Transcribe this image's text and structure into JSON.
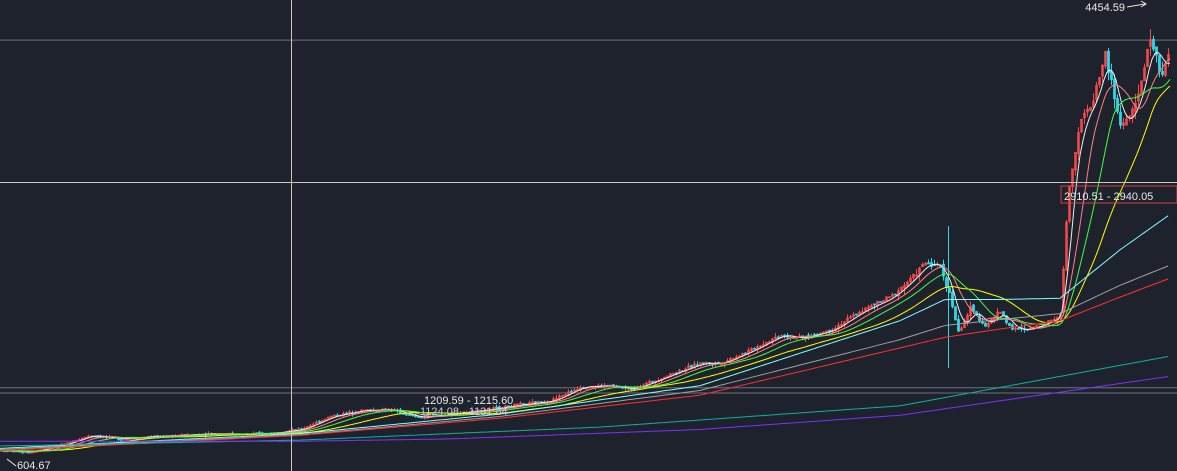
{
  "chart_data": {
    "type": "candlestick",
    "y_scale": "linear",
    "y_range": [
      604.67,
      4454.59
    ],
    "colors": {
      "up": "#f04a4a",
      "down": "#2fd7e8",
      "grid": "#6e7079",
      "crosshair": "#c8c8c8",
      "ma": [
        "#f0f0f0",
        "#ff8080",
        "#ffff00",
        "#40ff40",
        "#80ffff",
        "#a0a0a0",
        "#ff3030",
        "#10b0a0",
        "#8030ff"
      ]
    },
    "annotations": {
      "high": {
        "label": "4454.59",
        "value": 4454.59
      },
      "low": {
        "label": "604.67",
        "value": 604.67
      },
      "range1": {
        "label": "1209.59 - 1215.60",
        "value": 1212.6
      },
      "range2": {
        "label": "1124.08 - 1131.84",
        "value": 1128.0
      },
      "range3": {
        "label": "2910.51 - 2940.05",
        "value": 2925.3
      }
    },
    "price_series": [
      [
        0,
        700
      ],
      [
        30,
        690
      ],
      [
        60,
        745
      ],
      [
        90,
        830
      ],
      [
        120,
        800
      ],
      [
        150,
        820
      ],
      [
        180,
        830
      ],
      [
        210,
        845
      ],
      [
        240,
        840
      ],
      [
        270,
        848
      ],
      [
        300,
        880
      ],
      [
        330,
        990
      ],
      [
        360,
        1040
      ],
      [
        390,
        1050
      ],
      [
        405,
        1010
      ],
      [
        420,
        980
      ],
      [
        440,
        1000
      ],
      [
        480,
        1040
      ],
      [
        520,
        1090
      ],
      [
        550,
        1120
      ],
      [
        580,
        1240
      ],
      [
        610,
        1250
      ],
      [
        630,
        1220
      ],
      [
        650,
        1280
      ],
      [
        680,
        1380
      ],
      [
        700,
        1440
      ],
      [
        720,
        1440
      ],
      [
        750,
        1550
      ],
      [
        780,
        1680
      ],
      [
        800,
        1650
      ],
      [
        830,
        1720
      ],
      [
        860,
        1880
      ],
      [
        890,
        2000
      ],
      [
        910,
        2150
      ],
      [
        925,
        2290
      ],
      [
        940,
        2260
      ],
      [
        950,
        2000
      ],
      [
        958,
        1700
      ],
      [
        970,
        1900
      ],
      [
        985,
        1760
      ],
      [
        1000,
        1880
      ],
      [
        1010,
        1740
      ],
      [
        1025,
        1720
      ],
      [
        1045,
        1780
      ],
      [
        1060,
        1850
      ],
      [
        1068,
        2900
      ],
      [
        1080,
        3500
      ],
      [
        1090,
        3600
      ],
      [
        1105,
        4050
      ],
      [
        1120,
        3450
      ],
      [
        1135,
        3600
      ],
      [
        1150,
        4200
      ],
      [
        1160,
        3900
      ],
      [
        1170,
        4050
      ]
    ],
    "moving_averages": [
      {
        "color": "#80ffff",
        "points": [
          [
            0,
            720
          ],
          [
            300,
            845
          ],
          [
            500,
            1010
          ],
          [
            700,
            1250
          ],
          [
            900,
            1800
          ],
          [
            945,
            1980
          ],
          [
            1000,
            1980
          ],
          [
            1060,
            1990
          ],
          [
            1120,
            2400
          ],
          [
            1170,
            2700
          ]
        ]
      },
      {
        "color": "#a0a0a0",
        "points": [
          [
            0,
            710
          ],
          [
            300,
            835
          ],
          [
            500,
            990
          ],
          [
            700,
            1210
          ],
          [
            900,
            1640
          ],
          [
            945,
            1760
          ],
          [
            1000,
            1810
          ],
          [
            1060,
            1860
          ],
          [
            1120,
            2100
          ],
          [
            1170,
            2270
          ]
        ]
      },
      {
        "color": "#ff3030",
        "points": [
          [
            0,
            700
          ],
          [
            300,
            830
          ],
          [
            500,
            975
          ],
          [
            700,
            1170
          ],
          [
            900,
            1570
          ],
          [
            945,
            1660
          ],
          [
            1000,
            1730
          ],
          [
            1060,
            1800
          ],
          [
            1120,
            2000
          ],
          [
            1170,
            2160
          ]
        ]
      },
      {
        "color": "#10b0a0",
        "points": [
          [
            0,
            740
          ],
          [
            300,
            790
          ],
          [
            600,
            900
          ],
          [
            900,
            1080
          ],
          [
            1170,
            1500
          ]
        ]
      },
      {
        "color": "#8030ff",
        "points": [
          [
            0,
            780
          ],
          [
            300,
            780
          ],
          [
            450,
            800
          ],
          [
            700,
            880
          ],
          [
            900,
            1000
          ],
          [
            1170,
            1330
          ]
        ]
      }
    ]
  }
}
